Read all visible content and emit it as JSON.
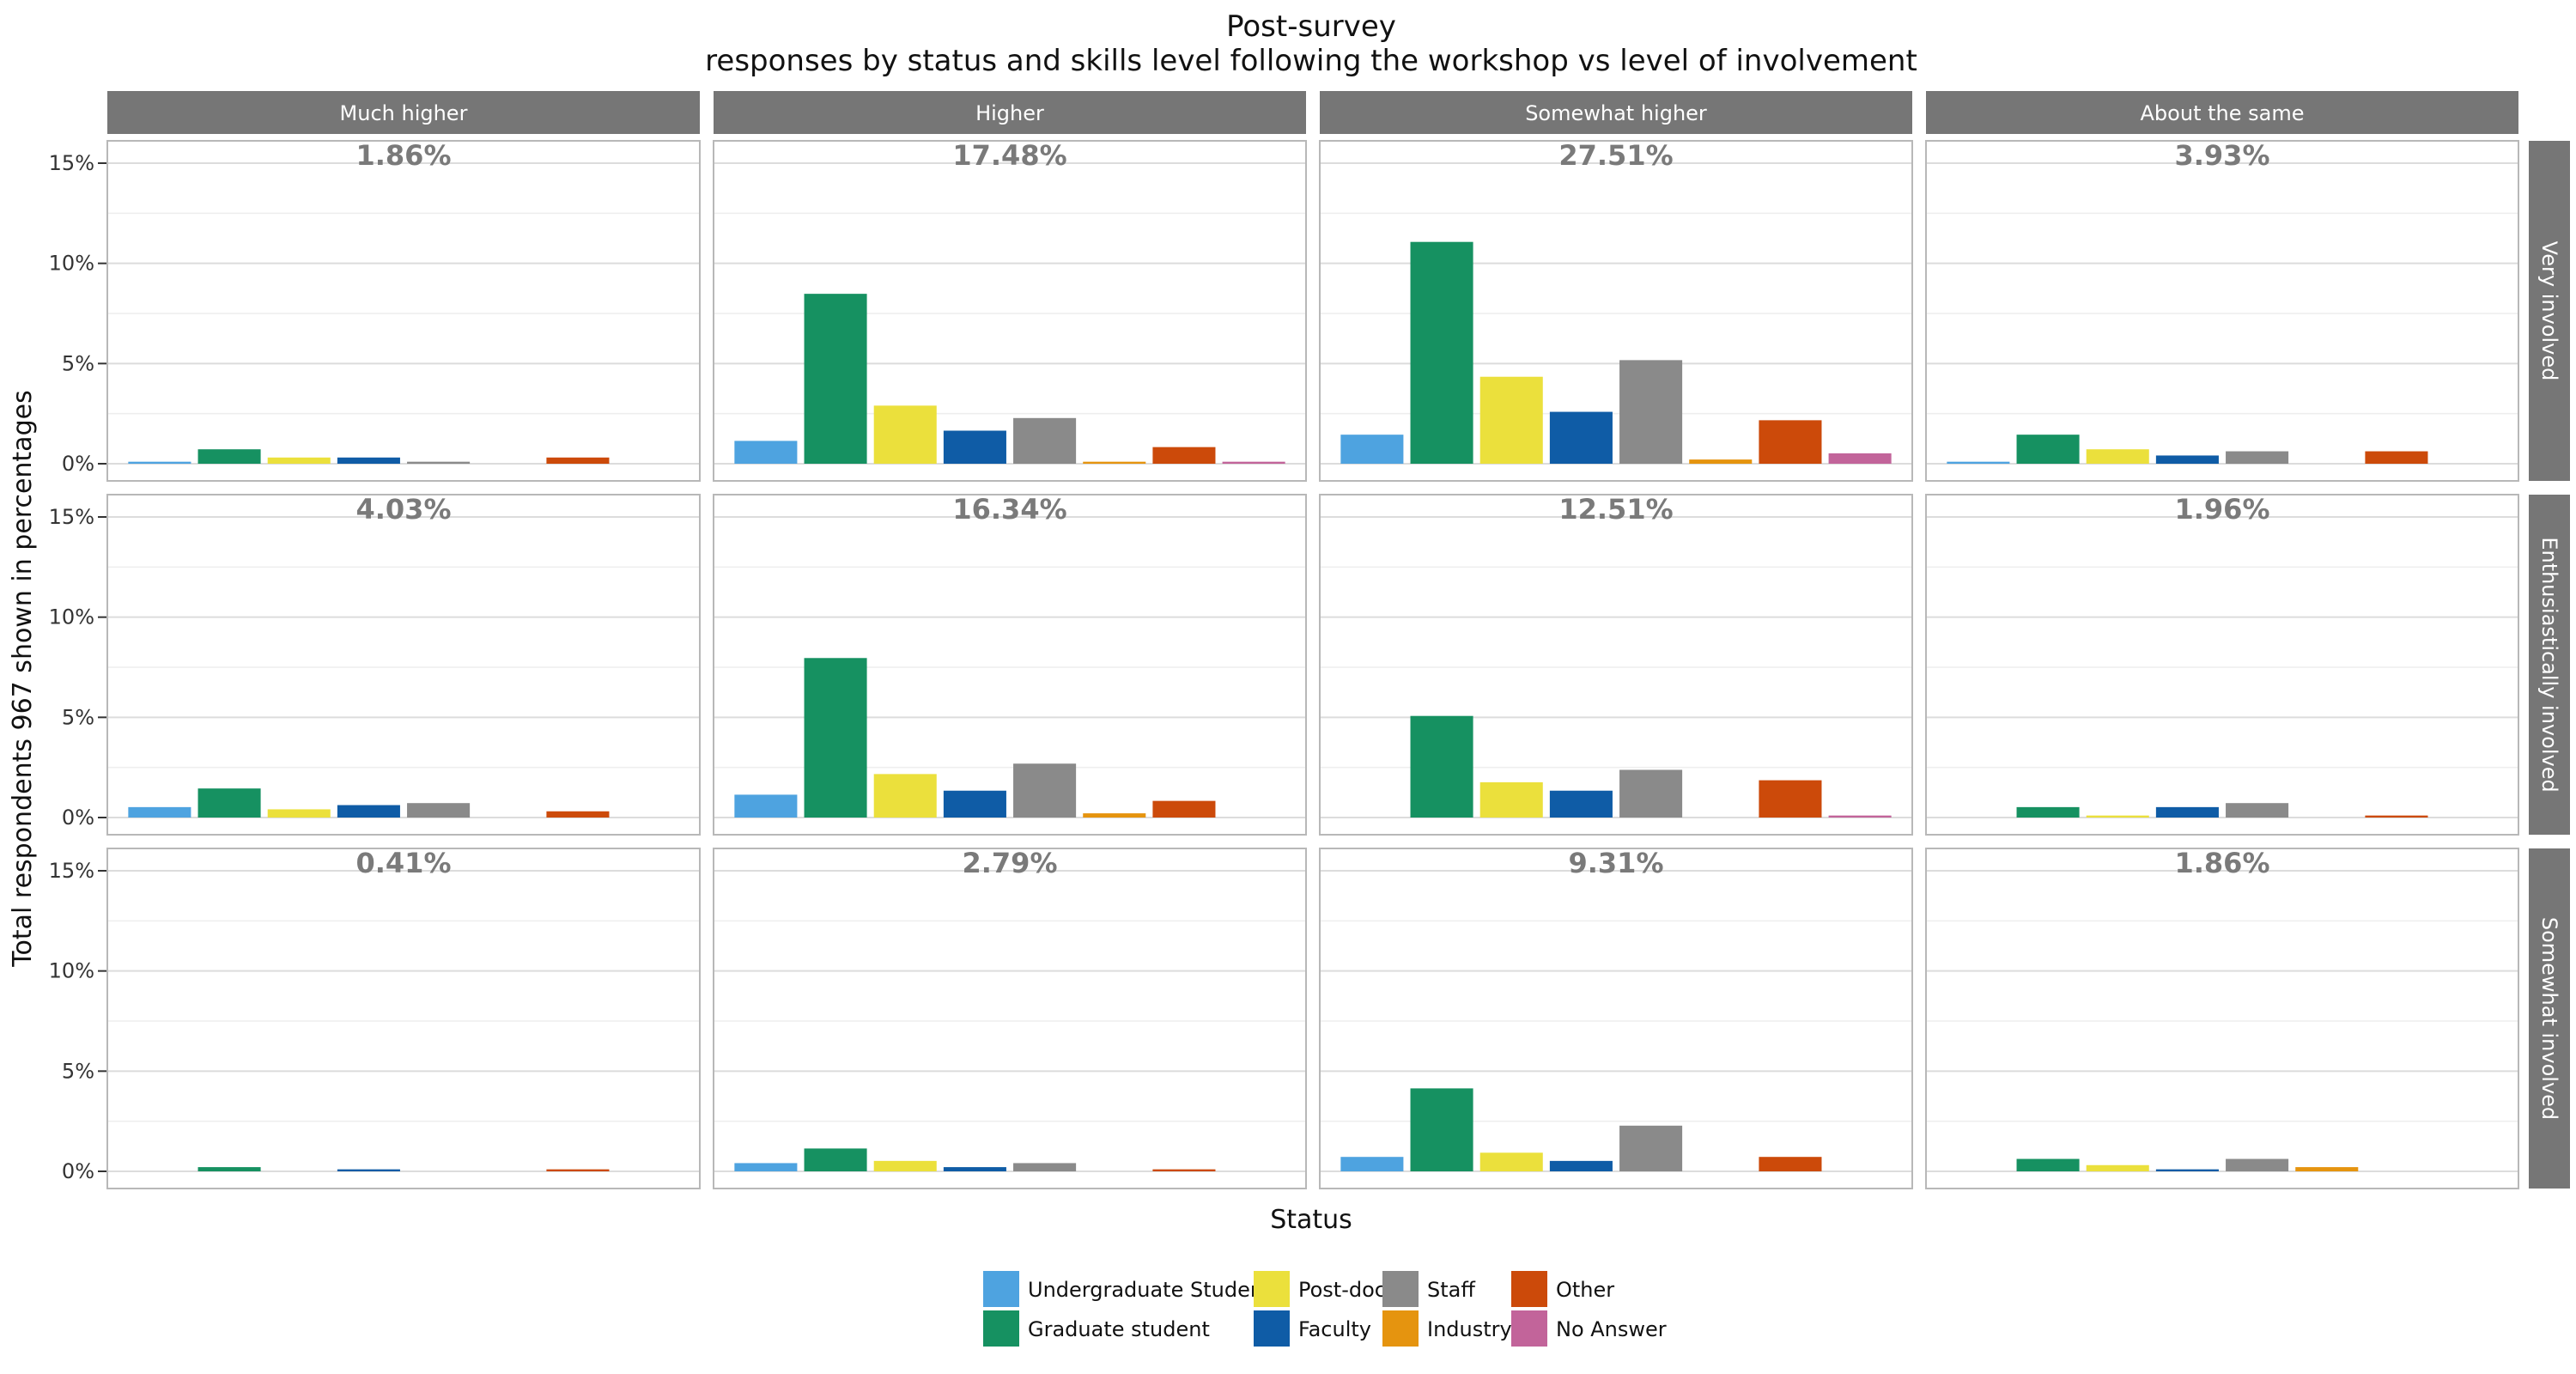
{
  "chart_data": {
    "type": "bar",
    "title": [
      "Post-survey",
      "responses by status and skills level following the workshop vs level of involvement"
    ],
    "xlabel": "Status",
    "ylabel": "Total respondents 967 shown in percentages",
    "ylim": [
      0,
      15
    ],
    "yticks": [
      "0%",
      "5%",
      "10%",
      "15%"
    ],
    "grid": true,
    "legend_position": "bottom",
    "column_facets": [
      "Much higher",
      "Higher",
      "Somewhat higher",
      "About the same"
    ],
    "row_facets": [
      "Very involved",
      "Enthusiastically involved",
      "Somewhat involved"
    ],
    "categories": [
      "Undergraduate Student",
      "Graduate student",
      "Post-doc",
      "Faculty",
      "Staff",
      "Industry",
      "Other",
      "No Answer"
    ],
    "colors": {
      "Undergraduate Student": "#4ea3e0",
      "Graduate student": "#169161",
      "Post-doc": "#ebe03c",
      "Faculty": "#0f5ca6",
      "Staff": "#8a8a8a",
      "Industry": "#e5940f",
      "Other": "#cc4a0a",
      "No Answer": "#c2649a"
    },
    "panels": [
      {
        "row": "Very involved",
        "col": "Much higher",
        "total": "1.86%",
        "values": [
          0.1,
          0.72,
          0.31,
          0.31,
          0.1,
          0,
          0.31,
          0
        ]
      },
      {
        "row": "Very involved",
        "col": "Higher",
        "total": "17.48%",
        "values": [
          1.14,
          8.48,
          2.9,
          1.65,
          2.28,
          0.1,
          0.83,
          0.1
        ]
      },
      {
        "row": "Very involved",
        "col": "Somewhat higher",
        "total": "27.51%",
        "values": [
          1.45,
          11.07,
          4.34,
          2.59,
          5.17,
          0.21,
          2.17,
          0.52
        ]
      },
      {
        "row": "Very involved",
        "col": "About the same",
        "total": "3.93%",
        "values": [
          0.1,
          1.45,
          0.72,
          0.41,
          0.62,
          0,
          0.62,
          0
        ]
      },
      {
        "row": "Enthusiastically involved",
        "col": "Much higher",
        "total": "4.03%",
        "values": [
          0.52,
          1.45,
          0.41,
          0.62,
          0.72,
          0,
          0.31,
          0
        ]
      },
      {
        "row": "Enthusiastically involved",
        "col": "Higher",
        "total": "16.34%",
        "values": [
          1.14,
          7.96,
          2.17,
          1.34,
          2.69,
          0.21,
          0.83,
          0
        ]
      },
      {
        "row": "Enthusiastically involved",
        "col": "Somewhat higher",
        "total": "12.51%",
        "values": [
          0,
          5.07,
          1.76,
          1.34,
          2.38,
          0,
          1.86,
          0.1
        ]
      },
      {
        "row": "Enthusiastically involved",
        "col": "About the same",
        "total": "1.96%",
        "values": [
          0,
          0.52,
          0.1,
          0.52,
          0.72,
          0,
          0.1,
          0
        ]
      },
      {
        "row": "Somewhat involved",
        "col": "Much higher",
        "total": "0.41%",
        "values": [
          0,
          0.21,
          0,
          0.1,
          0,
          0,
          0.1,
          0
        ]
      },
      {
        "row": "Somewhat involved",
        "col": "Higher",
        "total": "2.79%",
        "values": [
          0.41,
          1.14,
          0.52,
          0.21,
          0.41,
          0,
          0.1,
          0
        ]
      },
      {
        "row": "Somewhat involved",
        "col": "Somewhat higher",
        "total": "9.31%",
        "values": [
          0.72,
          4.14,
          0.93,
          0.52,
          2.28,
          0,
          0.72,
          0
        ]
      },
      {
        "row": "Somewhat involved",
        "col": "About the same",
        "total": "1.86%",
        "values": [
          0,
          0.62,
          0.31,
          0.1,
          0.62,
          0.21,
          0,
          0
        ]
      }
    ],
    "legend": {
      "columns": [
        [
          "Undergraduate Student",
          "Graduate student"
        ],
        [
          "Post-doc",
          "Faculty"
        ],
        [
          "Staff",
          "Industry"
        ],
        [
          "Other",
          "No Answer"
        ]
      ]
    }
  }
}
